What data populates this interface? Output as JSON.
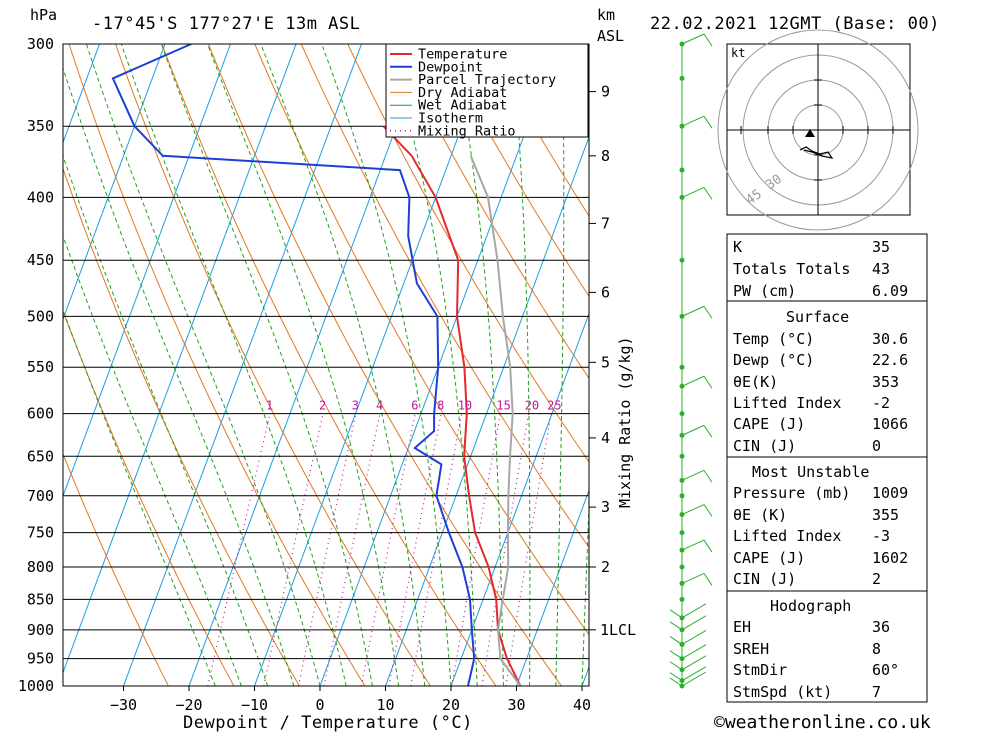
{
  "header": {
    "location": "-17°45'S 177°27'E 13m ASL",
    "datetime": "22.02.2021 12GMT (Base: 00)",
    "hpa_label": "hPa",
    "km_label": "km",
    "asl_label": "ASL"
  },
  "chart_data": {
    "type": "line",
    "title": "-17°45'S 177°27'E 13m ASL",
    "xlabel": "Dewpoint / Temperature (°C)",
    "ylabel": "hPa",
    "right_ylabel": "Mixing Ratio (g/kg)",
    "x_ticks": [
      -30,
      -20,
      -10,
      0,
      10,
      20,
      30,
      40
    ],
    "pressure_levels": [
      300,
      350,
      400,
      450,
      500,
      550,
      600,
      650,
      700,
      750,
      800,
      850,
      900,
      950,
      1000
    ],
    "km_ticks": [
      {
        "label": "8",
        "p": 370
      },
      {
        "label": "7",
        "p": 420
      },
      {
        "label": "6",
        "p": 478
      },
      {
        "label": "5",
        "p": 545
      },
      {
        "label": "4",
        "p": 628
      },
      {
        "label": "3",
        "p": 715
      },
      {
        "label": "2",
        "p": 800
      },
      {
        "label": "1LCL",
        "p": 900
      },
      {
        "label": "9",
        "p": 328
      }
    ],
    "mixing_ratio_labels": [
      "1",
      "2",
      "3",
      "4",
      "6",
      "8",
      "10",
      "15",
      "20",
      "25"
    ],
    "mixing_ratio_values": [
      1,
      2,
      3,
      4,
      6,
      8,
      10,
      15,
      20,
      25
    ],
    "legend": [
      "Temperature",
      "Dewpoint",
      "Parcel Trajectory",
      "Dry Adiabat",
      "Wet Adiabat",
      "Isotherm",
      "Mixing Ratio"
    ],
    "series": [
      {
        "name": "Temperature",
        "color": "#e8262e",
        "points": [
          [
            30.6,
            1000
          ],
          [
            27,
            950
          ],
          [
            24,
            900
          ],
          [
            22,
            850
          ],
          [
            19,
            800
          ],
          [
            15,
            750
          ],
          [
            12,
            700
          ],
          [
            9,
            650
          ],
          [
            7,
            600
          ],
          [
            4,
            550
          ],
          [
            0,
            500
          ],
          [
            -3,
            450
          ],
          [
            -10,
            400
          ],
          [
            -16,
            370
          ],
          [
            -22,
            350
          ]
        ]
      },
      {
        "name": "Dewpoint",
        "color": "#1e3fd6",
        "points": [
          [
            22.6,
            1000
          ],
          [
            22,
            950
          ],
          [
            20,
            900
          ],
          [
            18,
            850
          ],
          [
            15,
            800
          ],
          [
            11,
            750
          ],
          [
            7,
            700
          ],
          [
            6,
            660
          ],
          [
            1,
            640
          ],
          [
            3,
            620
          ],
          [
            2,
            600
          ],
          [
            0,
            550
          ],
          [
            -3,
            500
          ],
          [
            -8,
            470
          ],
          [
            -12,
            430
          ],
          [
            -14,
            400
          ],
          [
            -17,
            380
          ],
          [
            -54,
            370
          ],
          [
            -60,
            350
          ],
          [
            -66,
            320
          ],
          [
            -56,
            300
          ]
        ]
      },
      {
        "name": "Parcel Trajectory",
        "color": "#a7a7a7",
        "points": [
          [
            30.6,
            1000
          ],
          [
            26,
            950
          ],
          [
            24,
            900
          ],
          [
            23,
            850
          ],
          [
            22,
            800
          ],
          [
            20,
            750
          ],
          [
            18,
            700
          ],
          [
            16,
            650
          ],
          [
            14,
            600
          ],
          [
            11,
            550
          ],
          [
            7,
            500
          ],
          [
            3,
            450
          ],
          [
            -2,
            400
          ],
          [
            -7,
            370
          ]
        ]
      }
    ],
    "hodograph": {
      "unit_label": "kt",
      "ring_labels": [
        "30",
        "45"
      ]
    },
    "wind_profile_label": "wind barbs"
  },
  "indices": [
    {
      "label": "K",
      "value": "35"
    },
    {
      "label": "Totals Totals",
      "value": "43"
    },
    {
      "label": "PW (cm)",
      "value": "6.09"
    }
  ],
  "surface": {
    "title": "Surface",
    "rows": [
      {
        "label": "Temp (°C)",
        "value": "30.6"
      },
      {
        "label": "Dewp (°C)",
        "value": "22.6"
      },
      {
        "label": "θE(K)",
        "value": "353"
      },
      {
        "label": "Lifted Index",
        "value": "-2"
      },
      {
        "label": "CAPE (J)",
        "value": "1066"
      },
      {
        "label": "CIN (J)",
        "value": "0"
      }
    ]
  },
  "most_unstable": {
    "title": "Most Unstable",
    "rows": [
      {
        "label": "Pressure (mb)",
        "value": "1009"
      },
      {
        "label": "θE (K)",
        "value": "355"
      },
      {
        "label": "Lifted Index",
        "value": "-3"
      },
      {
        "label": "CAPE (J)",
        "value": "1602"
      },
      {
        "label": "CIN (J)",
        "value": "2"
      }
    ]
  },
  "hodograph_table": {
    "title": "Hodograph",
    "rows": [
      {
        "label": "EH",
        "value": "36"
      },
      {
        "label": "SREH",
        "value": "8"
      },
      {
        "label": "StmDir",
        "value": "60°"
      },
      {
        "label": "StmSpd (kt)",
        "value": "7"
      }
    ]
  },
  "footer": {
    "copyright": "©weatheronline.co.uk"
  },
  "colors": {
    "temperature": "#e8262e",
    "dewpoint": "#1e3fd6",
    "parcel": "#a7a7a7",
    "dry_adiabat": "#e07a1f",
    "wet_adiabat": "#1fa01f",
    "isotherm": "#1e9ee0",
    "mixing_ratio": "#c0169a",
    "wind": "#2ab02a"
  }
}
